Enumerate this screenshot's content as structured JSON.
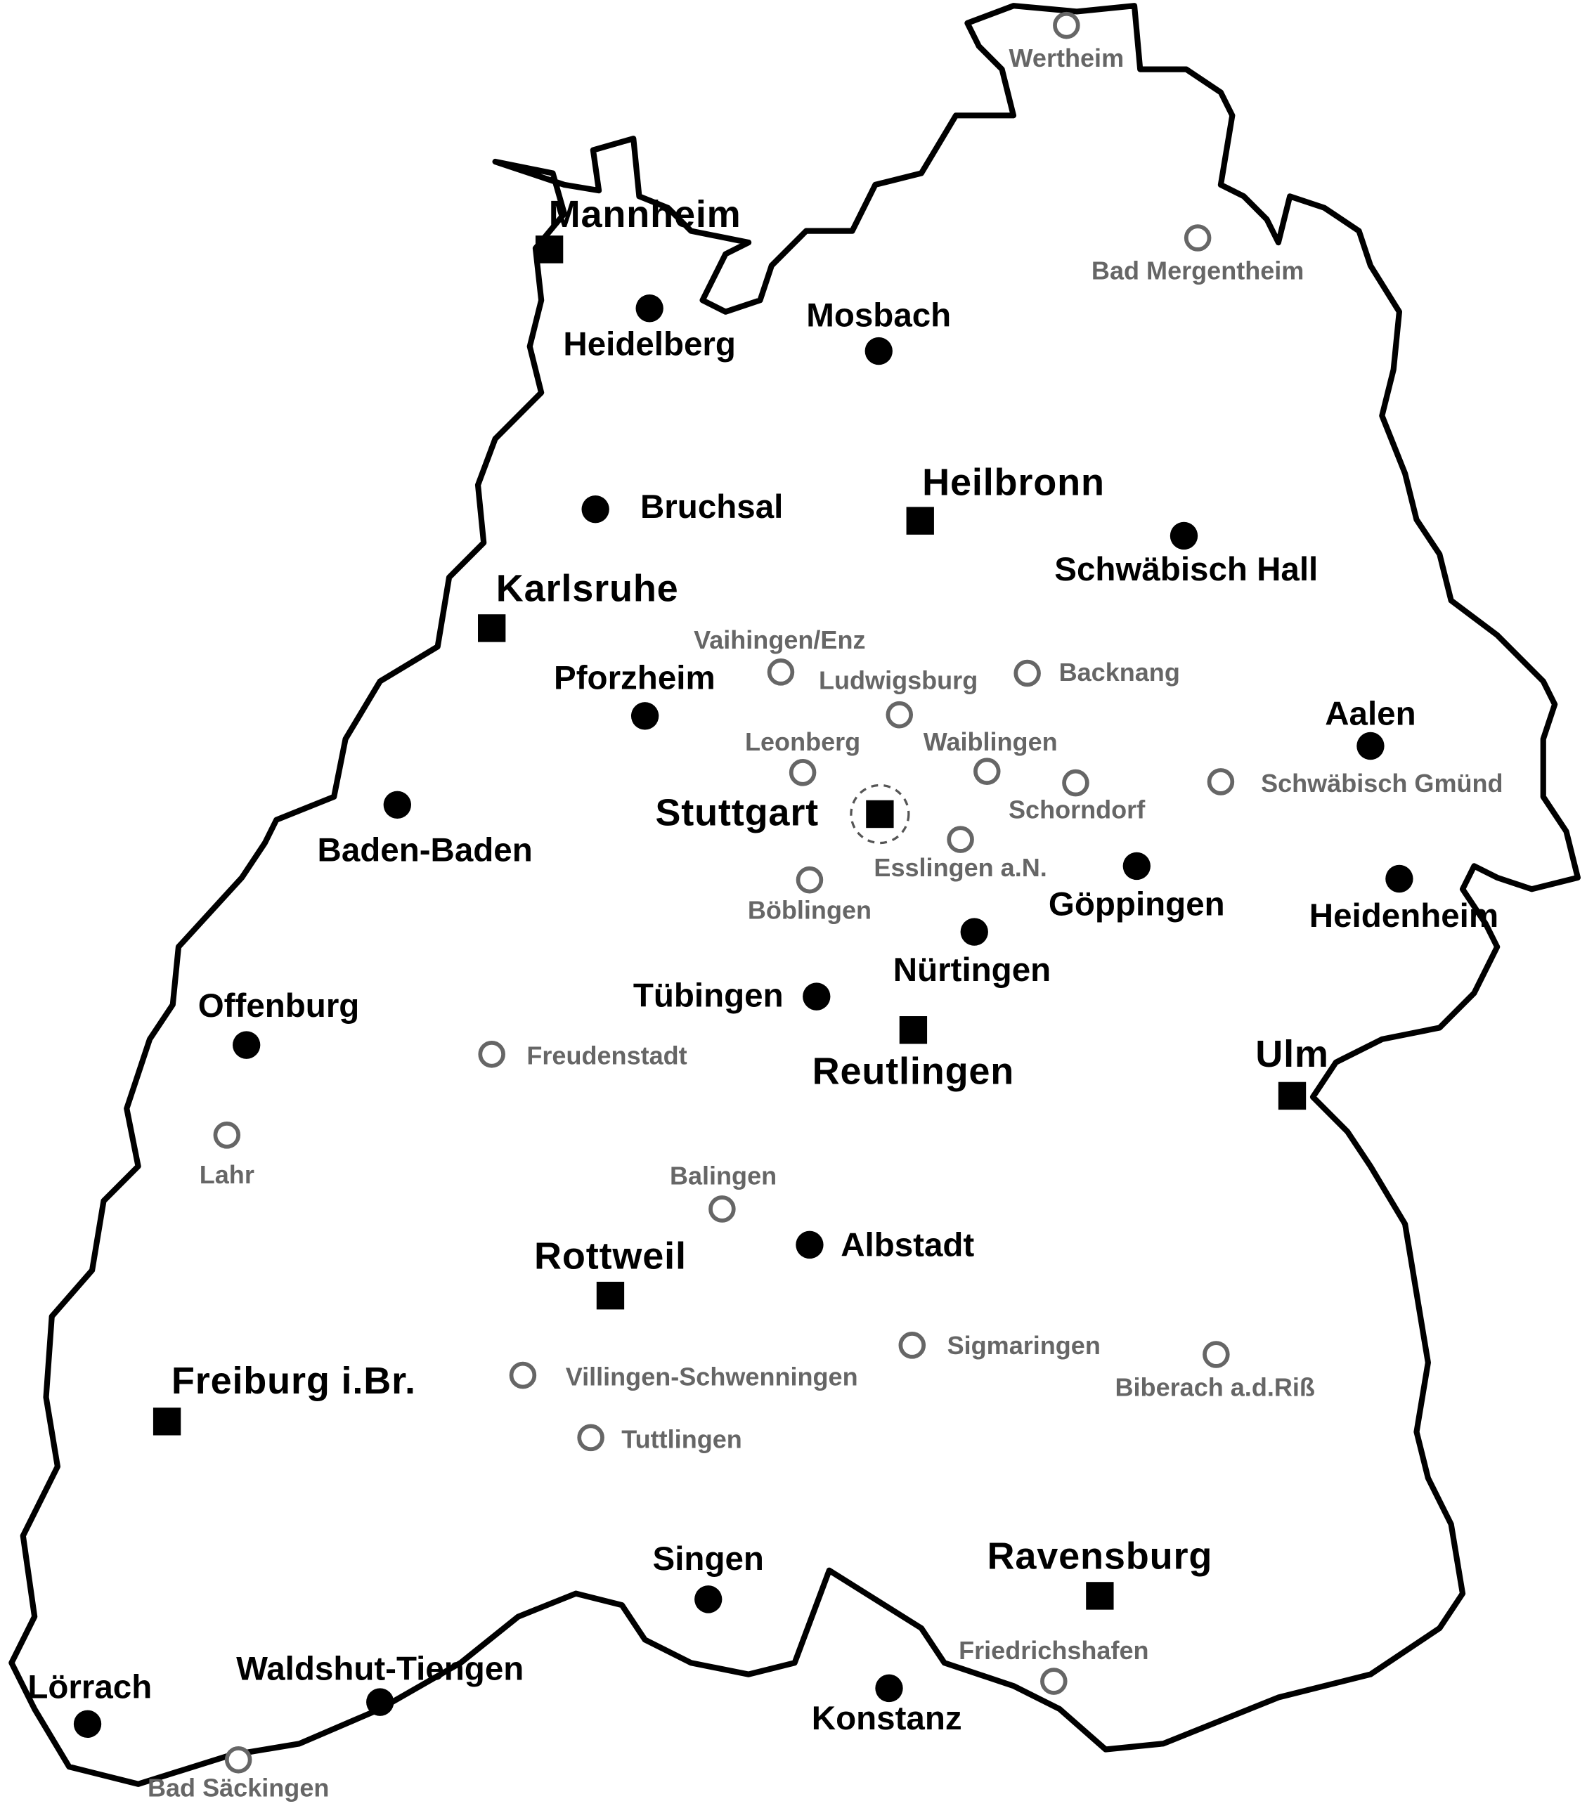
{
  "map": {
    "region": "Baden-Württemberg",
    "colors": {
      "border": "#000000",
      "major": "#000000",
      "medium": "#000000",
      "minor": "#666666",
      "background": "#ffffff"
    },
    "legend_semantics": {
      "major": "filled-square",
      "medium": "filled-circle",
      "minor": "open-circle",
      "capital": "dashed-ring"
    },
    "cities": {
      "major": [
        "Mannheim",
        "Heilbronn",
        "Karlsruhe",
        "Stuttgart",
        "Reutlingen",
        "Ulm",
        "Rottweil",
        "Freiburg i.Br.",
        "Ravensburg"
      ],
      "medium": [
        "Heidelberg",
        "Mosbach",
        "Bruchsal",
        "Schwäbisch Hall",
        "Pforzheim",
        "Aalen",
        "Baden-Baden",
        "Göppingen",
        "Heidenheim",
        "Nürtingen",
        "Tübingen",
        "Offenburg",
        "Albstadt",
        "Singen",
        "Konstanz",
        "Waldshut-Tiengen",
        "Lörrach"
      ],
      "minor": [
        "Wertheim",
        "Bad Mergentheim",
        "Vaihingen/Enz",
        "Ludwigsburg",
        "Backnang",
        "Leonberg",
        "Waiblingen",
        "Schorndorf",
        "Schwäbisch Gmünd",
        "Esslingen a.N.",
        "Böblingen",
        "Freudenstadt",
        "Lahr",
        "Balingen",
        "Sigmaringen",
        "Biberach a.d.Riß",
        "Villingen-Schwenningen",
        "Tuttlingen",
        "Friedrichshafen",
        "Bad Säckingen"
      ]
    },
    "capital": "Stuttgart"
  }
}
